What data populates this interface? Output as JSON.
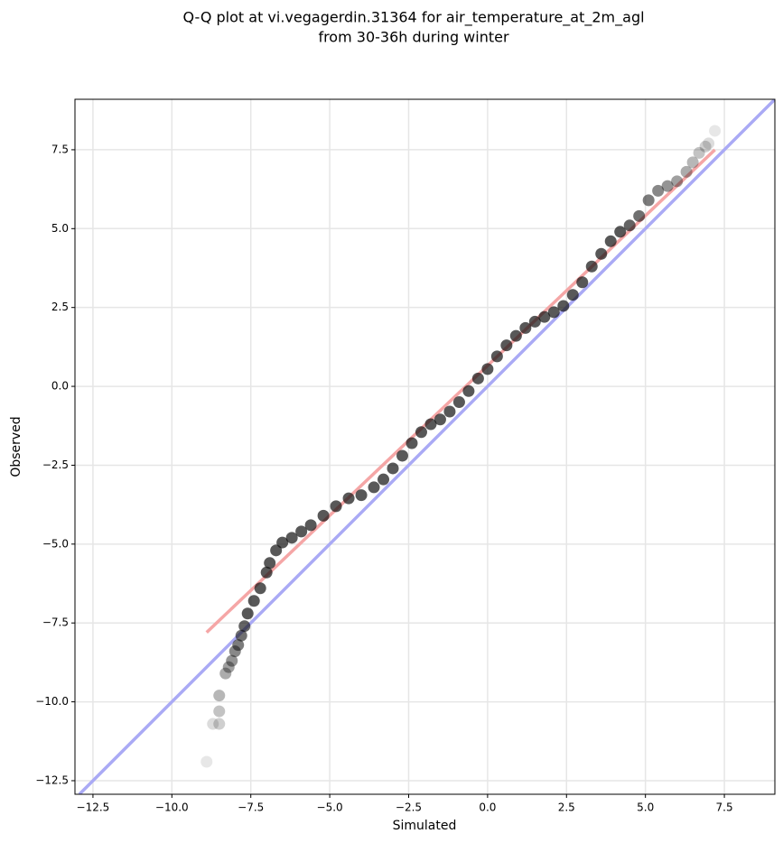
{
  "chart_data": {
    "type": "scatter",
    "title": [
      "Q-Q plot at vi.vegagerdin.31364 for air_temperature_at_2m_agl",
      "from 30-36h during winter"
    ],
    "x_label": "Simulated",
    "y_label": "Observed",
    "xlim": [
      -13.07,
      9.1
    ],
    "ylim": [
      -12.93,
      9.1
    ],
    "xticks": [
      {
        "value": -12.5,
        "label": "−12.5"
      },
      {
        "value": -10,
        "label": "−10.0"
      },
      {
        "value": -7.5,
        "label": "−7.5"
      },
      {
        "value": -5,
        "label": "−5.0"
      },
      {
        "value": -2.5,
        "label": "−2.5"
      },
      {
        "value": 0,
        "label": "0.0"
      },
      2.5,
      {
        "value": 5,
        "label": "5.0"
      },
      7.5
    ],
    "yticks": [
      {
        "value": -12.5,
        "label": "−12.5"
      },
      {
        "value": -10,
        "label": "−10.0"
      },
      {
        "value": -7.5,
        "label": "−7.5"
      },
      {
        "value": -5,
        "label": "−5.0"
      },
      {
        "value": -2.5,
        "label": "−2.5"
      },
      {
        "value": 0,
        "label": "0.0"
      },
      2.5,
      {
        "value": 5,
        "label": "5.0"
      },
      7.5
    ],
    "grid": true,
    "point_color": "#111111",
    "identity_color": "#aaaaf5",
    "fit_line": {
      "color": "#f5a6a6",
      "x": [
        -8.9,
        7.2
      ],
      "y": [
        -7.8,
        7.5
      ]
    },
    "x": [
      -8.9,
      -8.7,
      -8.5,
      -8.5,
      -8.5,
      -8.3,
      -8.2,
      -8.1,
      -8.0,
      -7.9,
      -7.8,
      -7.7,
      -7.6,
      -7.4,
      -7.2,
      -7.0,
      -6.9,
      -6.7,
      -6.5,
      -6.2,
      -5.9,
      -5.6,
      -5.2,
      -4.8,
      -4.4,
      -4.0,
      -3.6,
      -3.3,
      -3.0,
      -2.7,
      -2.4,
      -2.1,
      -1.8,
      -1.5,
      -1.2,
      -0.9,
      -0.6,
      -0.3,
      0.0,
      0.3,
      0.6,
      0.9,
      1.2,
      1.5,
      1.8,
      2.1,
      2.4,
      2.7,
      3.0,
      3.3,
      3.6,
      3.9,
      4.2,
      4.5,
      4.8,
      5.1,
      5.4,
      5.7,
      6.0,
      6.3,
      6.5,
      6.7,
      6.9,
      7.0,
      7.2
    ],
    "values": [
      -11.9,
      -10.7,
      -10.7,
      -10.3,
      -9.8,
      -9.1,
      -8.9,
      -8.7,
      -8.4,
      -8.2,
      -7.9,
      -7.6,
      -7.2,
      -6.8,
      -6.4,
      -5.9,
      -5.6,
      -5.2,
      -4.95,
      -4.8,
      -4.6,
      -4.4,
      -4.1,
      -3.8,
      -3.55,
      -3.45,
      -3.2,
      -2.95,
      -2.6,
      -2.2,
      -1.8,
      -1.45,
      -1.2,
      -1.05,
      -0.8,
      -0.5,
      -0.15,
      0.25,
      0.55,
      0.95,
      1.3,
      1.6,
      1.85,
      2.05,
      2.2,
      2.35,
      2.55,
      2.9,
      3.3,
      3.8,
      4.2,
      4.6,
      4.9,
      5.1,
      5.4,
      5.9,
      6.2,
      6.35,
      6.5,
      6.8,
      7.1,
      7.4,
      7.6,
      7.7,
      8.1
    ]
  }
}
